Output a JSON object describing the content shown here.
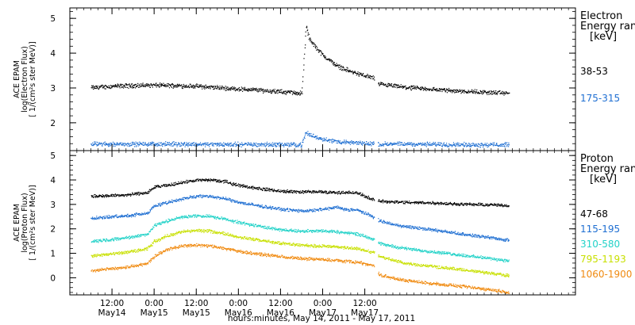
{
  "figure": {
    "x_axis_title": "hours:minutes, May 14, 2011 - May 17, 2011"
  },
  "chart_data": [
    {
      "type": "scatter",
      "panel": "electron",
      "ylabel_lines": [
        "ACE EPAM",
        "log(Electron Flux)",
        "[ 1/(cm²s ster MeV)]"
      ],
      "ylim": [
        1.2,
        5.3
      ],
      "yticks": [
        2,
        3,
        4,
        5
      ],
      "legend": {
        "title_line1": "Electron",
        "title_line2": "Energy ran",
        "unit": "[keV]"
      },
      "series": [
        {
          "name": "38-53",
          "color": "#000000",
          "points": [
            [
              0,
              3.02
            ],
            [
              6,
              3.06
            ],
            [
              12,
              3.08
            ],
            [
              18,
              3.09
            ],
            [
              24,
              3.08
            ],
            [
              30,
              3.06
            ],
            [
              36,
              3.02
            ],
            [
              42,
              2.98
            ],
            [
              48,
              2.95
            ],
            [
              54,
              2.9
            ],
            [
              59,
              2.87
            ],
            [
              60,
              2.85
            ],
            [
              61.2,
              4.8
            ],
            [
              62,
              4.45
            ],
            [
              63,
              4.3
            ],
            [
              66,
              3.95
            ],
            [
              70,
              3.65
            ],
            [
              74,
              3.48
            ],
            [
              78,
              3.36
            ],
            [
              80.5,
              3.3
            ],
            [
              81.7,
              3.12
            ],
            [
              86,
              3.07
            ],
            [
              90,
              3.02
            ],
            [
              96,
              2.98
            ],
            [
              102,
              2.94
            ],
            [
              108,
              2.91
            ],
            [
              114,
              2.88
            ],
            [
              119,
              2.86
            ]
          ]
        },
        {
          "name": "175-315",
          "color": "#1f6fd2",
          "points": [
            [
              0,
              1.4
            ],
            [
              12,
              1.4
            ],
            [
              24,
              1.4
            ],
            [
              36,
              1.39
            ],
            [
              48,
              1.39
            ],
            [
              60,
              1.38
            ],
            [
              61.2,
              1.73
            ],
            [
              62,
              1.68
            ],
            [
              64,
              1.6
            ],
            [
              67,
              1.52
            ],
            [
              70,
              1.47
            ],
            [
              74,
              1.44
            ],
            [
              78,
              1.42
            ],
            [
              80.5,
              1.41
            ],
            [
              81.7,
              1.4
            ],
            [
              90,
              1.4
            ],
            [
              100,
              1.39
            ],
            [
              110,
              1.38
            ],
            [
              119,
              1.38
            ]
          ]
        }
      ]
    },
    {
      "type": "scatter",
      "panel": "proton",
      "ylabel_lines": [
        "ACE EPAM",
        "log(Proton Flux)",
        "[ 1/(cm²s ster MeV)]"
      ],
      "ylim": [
        -0.7,
        5.2
      ],
      "yticks": [
        0,
        1,
        2,
        3,
        4,
        5
      ],
      "legend": {
        "title_line1": "Proton",
        "title_line2": "Energy ran",
        "unit": "[keV]"
      },
      "series": [
        {
          "name": "47-68",
          "color": "#000000",
          "points": [
            [
              0,
              3.35
            ],
            [
              10,
              3.4
            ],
            [
              16,
              3.5
            ],
            [
              18,
              3.72
            ],
            [
              22,
              3.8
            ],
            [
              26,
              3.92
            ],
            [
              30,
              4.0
            ],
            [
              34,
              4.02
            ],
            [
              38,
              3.95
            ],
            [
              42,
              3.8
            ],
            [
              48,
              3.66
            ],
            [
              54,
              3.56
            ],
            [
              60,
              3.53
            ],
            [
              64,
              3.54
            ],
            [
              70,
              3.5
            ],
            [
              74,
              3.5
            ],
            [
              76,
              3.48
            ],
            [
              80.5,
              3.2
            ],
            [
              82,
              3.15
            ],
            [
              86,
              3.12
            ],
            [
              90,
              3.1
            ],
            [
              96,
              3.08
            ],
            [
              102,
              3.05
            ],
            [
              108,
              3.02
            ],
            [
              114,
              3.0
            ],
            [
              119,
              2.96
            ]
          ]
        },
        {
          "name": "115-195",
          "color": "#1f6fd2",
          "points": [
            [
              0,
              2.45
            ],
            [
              10,
              2.55
            ],
            [
              16,
              2.65
            ],
            [
              18,
              2.95
            ],
            [
              22,
              3.1
            ],
            [
              26,
              3.25
            ],
            [
              30,
              3.35
            ],
            [
              34,
              3.35
            ],
            [
              38,
              3.25
            ],
            [
              42,
              3.1
            ],
            [
              48,
              2.95
            ],
            [
              54,
              2.82
            ],
            [
              60,
              2.75
            ],
            [
              64,
              2.78
            ],
            [
              70,
              2.9
            ],
            [
              72,
              2.82
            ],
            [
              76,
              2.78
            ],
            [
              80.5,
              2.5
            ],
            [
              82,
              2.35
            ],
            [
              86,
              2.2
            ],
            [
              90,
              2.1
            ],
            [
              96,
              2.0
            ],
            [
              102,
              1.88
            ],
            [
              108,
              1.75
            ],
            [
              114,
              1.65
            ],
            [
              119,
              1.55
            ]
          ]
        },
        {
          "name": "310-580",
          "color": "#22d2c8",
          "points": [
            [
              0,
              1.5
            ],
            [
              10,
              1.65
            ],
            [
              16,
              1.8
            ],
            [
              18,
              2.15
            ],
            [
              22,
              2.35
            ],
            [
              26,
              2.5
            ],
            [
              30,
              2.55
            ],
            [
              34,
              2.52
            ],
            [
              38,
              2.42
            ],
            [
              42,
              2.28
            ],
            [
              48,
              2.12
            ],
            [
              54,
              1.98
            ],
            [
              60,
              1.92
            ],
            [
              64,
              1.95
            ],
            [
              70,
              1.9
            ],
            [
              76,
              1.8
            ],
            [
              80.5,
              1.6
            ],
            [
              82,
              1.42
            ],
            [
              86,
              1.3
            ],
            [
              90,
              1.2
            ],
            [
              96,
              1.1
            ],
            [
              102,
              1.0
            ],
            [
              108,
              0.9
            ],
            [
              114,
              0.8
            ],
            [
              119,
              0.7
            ]
          ]
        },
        {
          "name": "795-1193",
          "color": "#c8e000",
          "points": [
            [
              0,
              0.9
            ],
            [
              10,
              1.05
            ],
            [
              16,
              1.2
            ],
            [
              18,
              1.5
            ],
            [
              22,
              1.75
            ],
            [
              26,
              1.9
            ],
            [
              30,
              1.95
            ],
            [
              34,
              1.92
            ],
            [
              38,
              1.82
            ],
            [
              42,
              1.68
            ],
            [
              48,
              1.55
            ],
            [
              54,
              1.42
            ],
            [
              60,
              1.35
            ],
            [
              64,
              1.32
            ],
            [
              70,
              1.28
            ],
            [
              76,
              1.2
            ],
            [
              80.5,
              1.05
            ],
            [
              82,
              0.9
            ],
            [
              86,
              0.72
            ],
            [
              90,
              0.6
            ],
            [
              96,
              0.5
            ],
            [
              102,
              0.4
            ],
            [
              108,
              0.3
            ],
            [
              114,
              0.2
            ],
            [
              119,
              0.1
            ]
          ]
        },
        {
          "name": "1060-1900",
          "color": "#f08a10",
          "points": [
            [
              0,
              0.3
            ],
            [
              10,
              0.45
            ],
            [
              16,
              0.6
            ],
            [
              18,
              0.9
            ],
            [
              22,
              1.2
            ],
            [
              26,
              1.32
            ],
            [
              30,
              1.35
            ],
            [
              34,
              1.32
            ],
            [
              38,
              1.22
            ],
            [
              42,
              1.1
            ],
            [
              48,
              0.98
            ],
            [
              54,
              0.88
            ],
            [
              60,
              0.8
            ],
            [
              64,
              0.78
            ],
            [
              70,
              0.72
            ],
            [
              76,
              0.65
            ],
            [
              80.5,
              0.5
            ],
            [
              82,
              0.15
            ],
            [
              86,
              0.0
            ],
            [
              90,
              -0.1
            ],
            [
              96,
              -0.2
            ],
            [
              102,
              -0.28
            ],
            [
              108,
              -0.38
            ],
            [
              114,
              -0.48
            ],
            [
              119,
              -0.58
            ]
          ]
        }
      ]
    }
  ],
  "x_axis": {
    "xlim": [
      -6,
      138
    ],
    "ticks": [
      {
        "h": 6,
        "time": "12:00",
        "date": "May14"
      },
      {
        "h": 18,
        "time": "0:00",
        "date": "May15"
      },
      {
        "h": 30,
        "time": "12:00",
        "date": "May15"
      },
      {
        "h": 42,
        "time": "0:00",
        "date": "May16"
      },
      {
        "h": 54,
        "time": "12:00",
        "date": "May16"
      },
      {
        "h": 66,
        "time": "0:00",
        "date": "May17"
      },
      {
        "h": 78,
        "time": "12:00",
        "date": "May17"
      }
    ]
  }
}
